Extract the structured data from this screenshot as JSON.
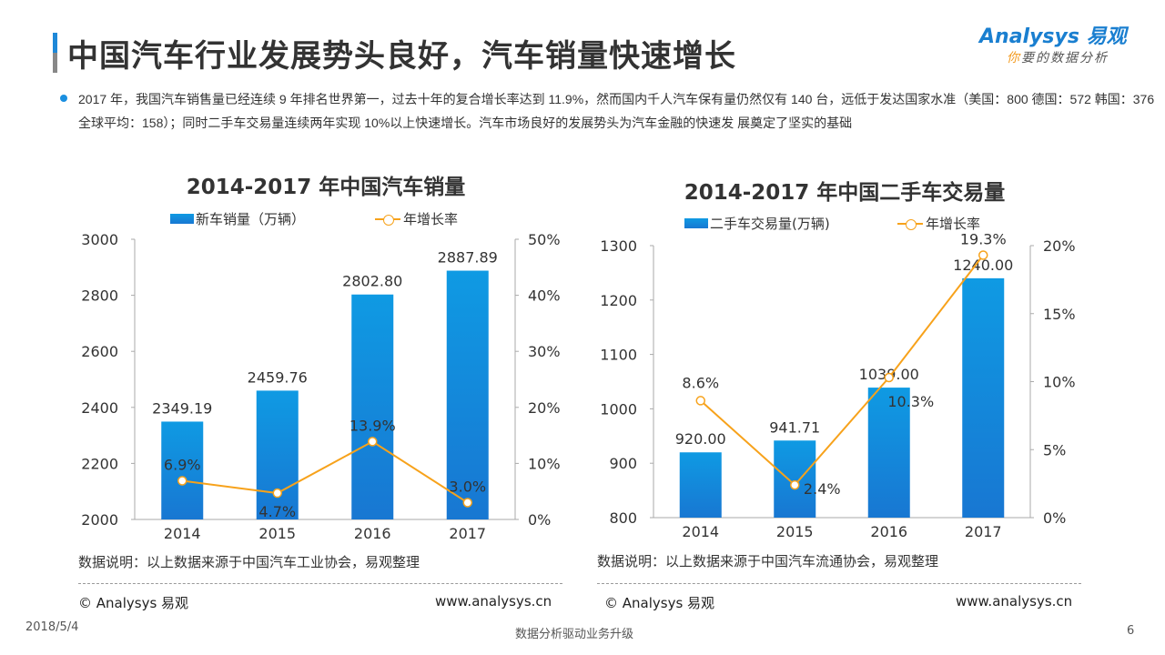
{
  "header": {
    "title": "中国汽车行业发展势头良好，汽车销量快速增长",
    "logo_text": "Analysys 易观",
    "logo_slogan": "你要的数据分析"
  },
  "summary": "2017 年，我国汽车销售量已经连续 9 年排名世界第一，过去十年的复合增长率达到 11.9%，然而国内千人汽车保有量仍然仅有 140 台，远低于发达国家水准（美国：800  德国：572   韩国：376  全球平均：158）；同时二手车交易量连续两年实现 10%以上快速增长。汽车市场良好的发展势头为汽车金融的快速发 展奠定了坚实的基础",
  "colors": {
    "bar_top": "#0f9ae3",
    "bar_bottom": "#1877d2",
    "line": "#f7a21b",
    "accent": "#1e88d8"
  },
  "chart_data": [
    {
      "type": "bar+line",
      "title": "2014-2017 年中国汽车销量",
      "categories": [
        "2014",
        "2015",
        "2016",
        "2017"
      ],
      "series": [
        {
          "name": "新车销量（万辆）",
          "type": "bar",
          "axis": "left",
          "values": [
            2349.19,
            2459.76,
            2802.8,
            2887.89
          ],
          "labels": [
            "2349.19",
            "2459.76",
            "2802.80",
            "2887.89"
          ]
        },
        {
          "name": "年增长率",
          "type": "line",
          "axis": "right",
          "values": [
            6.9,
            4.7,
            13.9,
            3.0
          ],
          "labels": [
            "6.9%",
            "4.7%",
            "13.9%",
            "3.0%"
          ]
        }
      ],
      "ylim": [
        2000,
        3000
      ],
      "yticks": [
        "2000",
        "2200",
        "2400",
        "2600",
        "2800",
        "3000"
      ],
      "y2lim": [
        0,
        50
      ],
      "y2ticks": [
        "0%",
        "10%",
        "20%",
        "30%",
        "40%",
        "50%"
      ],
      "grid": false,
      "legend": "top",
      "note": "数据说明：以上数据来源于中国汽车工业协会，易观整理",
      "copyright": "© Analysys 易观",
      "url": "www.analysys.cn"
    },
    {
      "type": "bar+line",
      "title": "2014-2017 年中国二手车交易量",
      "categories": [
        "2014",
        "2015",
        "2016",
        "2017"
      ],
      "series": [
        {
          "name": "二手车交易量(万辆)",
          "type": "bar",
          "axis": "left",
          "values": [
            920.0,
            941.71,
            1039.0,
            1240.0
          ],
          "labels": [
            "920.00",
            "941.71",
            "1039.00",
            "1240.00"
          ]
        },
        {
          "name": "年增长率",
          "type": "line",
          "axis": "right",
          "values": [
            8.6,
            2.4,
            10.3,
            19.3
          ],
          "labels": [
            "8.6%",
            "2.4%",
            "10.3%",
            "19.3%"
          ]
        }
      ],
      "ylim": [
        800,
        1300
      ],
      "yticks": [
        "800",
        "900",
        "1000",
        "1100",
        "1200",
        "1300"
      ],
      "y2lim": [
        0,
        20
      ],
      "y2ticks": [
        "0%",
        "5%",
        "10%",
        "15%",
        "20%"
      ],
      "grid": false,
      "legend": "top",
      "note": "数据说明：以上数据来源于中国汽车流通协会，易观整理",
      "copyright": "© Analysys 易观",
      "url": "www.analysys.cn"
    }
  ],
  "footer": {
    "date": "2018/5/4",
    "slogan": "数据分析驱动业务升级",
    "page": "6"
  }
}
